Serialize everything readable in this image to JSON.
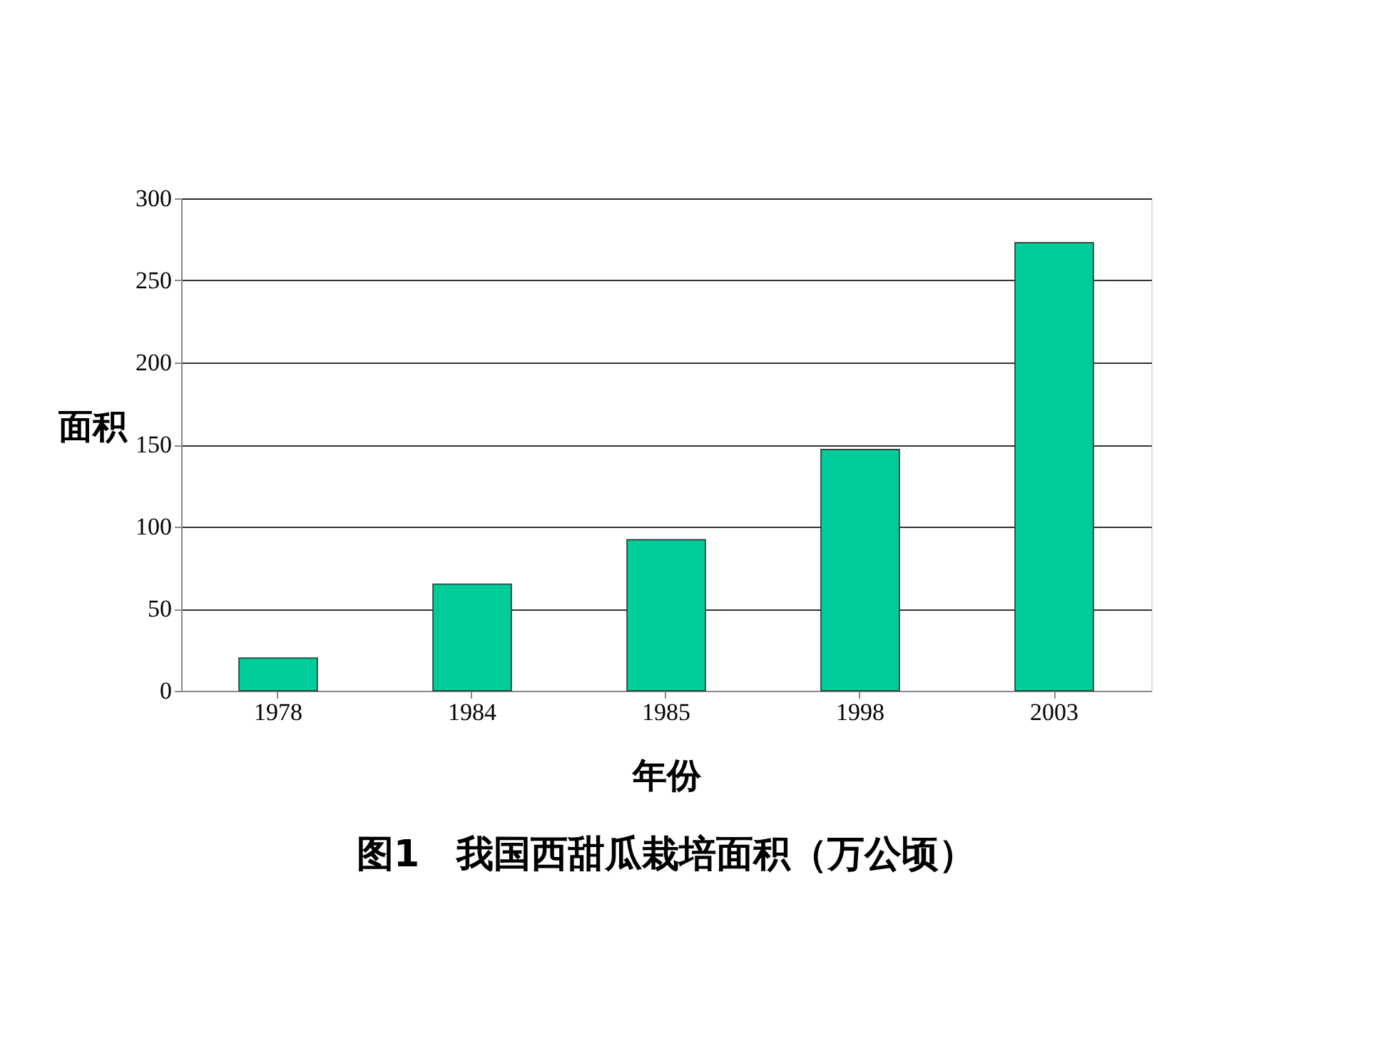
{
  "chart_data": {
    "type": "bar",
    "title": "图1　我国西甜瓜栽培面积（万公顷）",
    "xlabel": "年份",
    "ylabel": "面积",
    "categories": [
      "1978",
      "1984",
      "1985",
      "1998",
      "2003"
    ],
    "values": [
      20,
      65,
      92,
      147,
      273
    ],
    "color": "#00cc99",
    "ylim": [
      0,
      300
    ],
    "yticks": [
      0,
      50,
      100,
      150,
      200,
      250,
      300
    ],
    "grid": "y"
  }
}
